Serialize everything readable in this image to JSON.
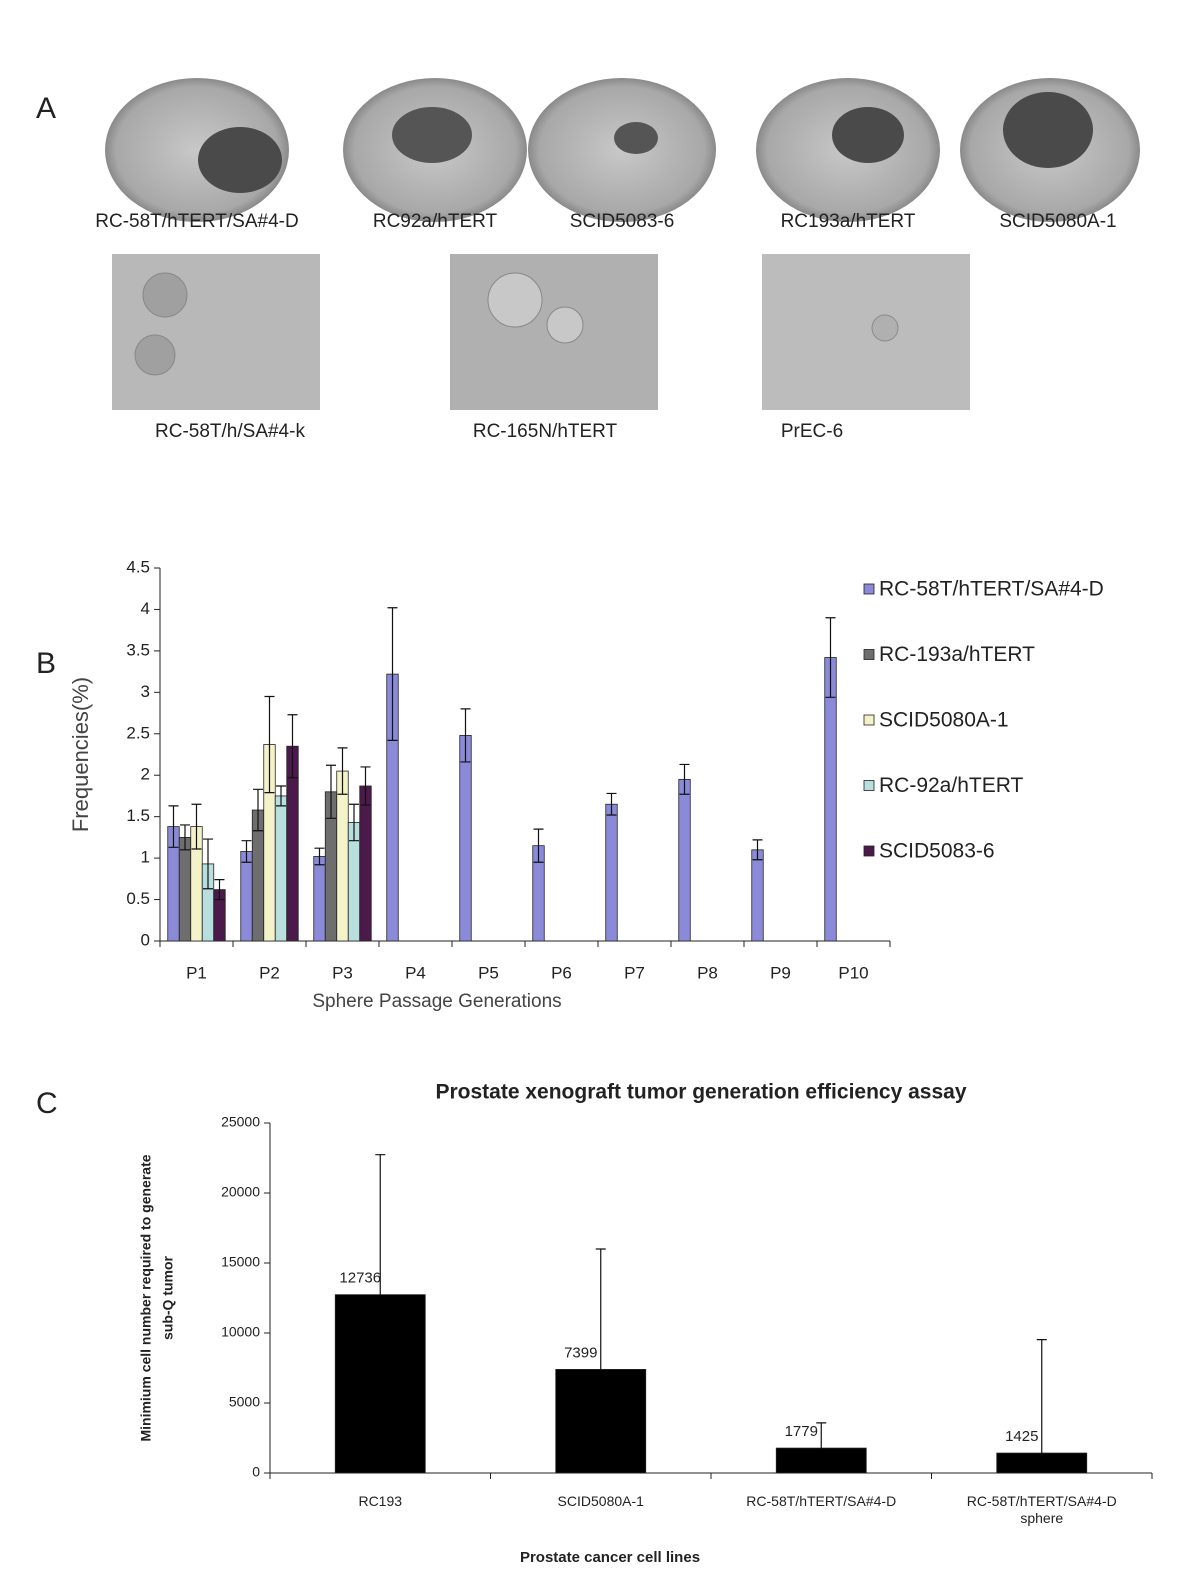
{
  "panel_labels": [
    "A",
    "B",
    "C"
  ],
  "panel_a": {
    "captions": [
      "RC-58T/hTERT/SA#4-D",
      "RC92a/hTERT",
      "SCID5083-6",
      "RC193a/hTERT",
      "SCID5080A-1",
      "RC-58T/h/SA#4-k",
      "RC-165N/hTERT",
      "PrEC-6"
    ]
  },
  "chart_data": [
    {
      "type": "bar",
      "xlabel": "Sphere Passage Generations",
      "ylabel": "Frequencies(%)",
      "categories": [
        "P1",
        "P2",
        "P3",
        "P4",
        "P5",
        "P6",
        "P7",
        "P8",
        "P9",
        "P10"
      ],
      "ylim": [
        0,
        4.5
      ],
      "yticks": [
        0,
        0.5,
        1,
        1.5,
        2,
        2.5,
        3,
        3.5,
        4,
        4.5
      ],
      "legend": "right",
      "series": [
        {
          "name": "RC-58T/hTERT/SA#4-D",
          "color": "#8a8ad8",
          "values": [
            1.38,
            1.08,
            1.02,
            3.22,
            2.48,
            1.15,
            1.65,
            1.95,
            1.1,
            3.42
          ],
          "errors": [
            0.25,
            0.13,
            0.1,
            0.8,
            0.32,
            0.2,
            0.13,
            0.18,
            0.12,
            0.48
          ]
        },
        {
          "name": "RC-193a/hTERT",
          "color": "#6e6e6e",
          "values": [
            1.25,
            1.58,
            1.8,
            null,
            null,
            null,
            null,
            null,
            null,
            null
          ],
          "errors": [
            0.15,
            0.25,
            0.32,
            null,
            null,
            null,
            null,
            null,
            null,
            null
          ]
        },
        {
          "name": "SCID5080A-1",
          "color": "#f4f2c8",
          "values": [
            1.38,
            2.37,
            2.05,
            null,
            null,
            null,
            null,
            null,
            null,
            null
          ],
          "errors": [
            0.27,
            0.58,
            0.28,
            null,
            null,
            null,
            null,
            null,
            null,
            null
          ]
        },
        {
          "name": "RC-92a/hTERT",
          "color": "#b8dede",
          "values": [
            0.93,
            1.75,
            1.43,
            null,
            null,
            null,
            null,
            null,
            null,
            null
          ],
          "errors": [
            0.3,
            0.12,
            0.22,
            null,
            null,
            null,
            null,
            null,
            null,
            null
          ]
        },
        {
          "name": "SCID5083-6",
          "color": "#4b1a4b",
          "values": [
            0.62,
            2.35,
            1.87,
            null,
            null,
            null,
            null,
            null,
            null,
            null
          ],
          "errors": [
            0.12,
            0.38,
            0.23,
            null,
            null,
            null,
            null,
            null,
            null,
            null
          ]
        }
      ]
    },
    {
      "type": "bar",
      "title": "Prostate xenograft tumor generation efficiency assay",
      "xlabel": "Prostate cancer cell lines",
      "ylabel": [
        "Minimium cell number required to generate",
        "sub-Q tumor"
      ],
      "categories": [
        "RC193",
        "SCID5080A-1",
        "RC-58T/hTERT/SA#4-D",
        "RC-58T/hTERT/SA#4-D sphere"
      ],
      "ylim": [
        0,
        25000
      ],
      "yticks": [
        0,
        5000,
        10000,
        15000,
        20000,
        25000
      ],
      "series": [
        {
          "color": "#000000",
          "values": [
            12736,
            7399,
            1779,
            1425
          ],
          "errors": [
            10000,
            8600,
            1800,
            8100
          ]
        }
      ]
    }
  ]
}
